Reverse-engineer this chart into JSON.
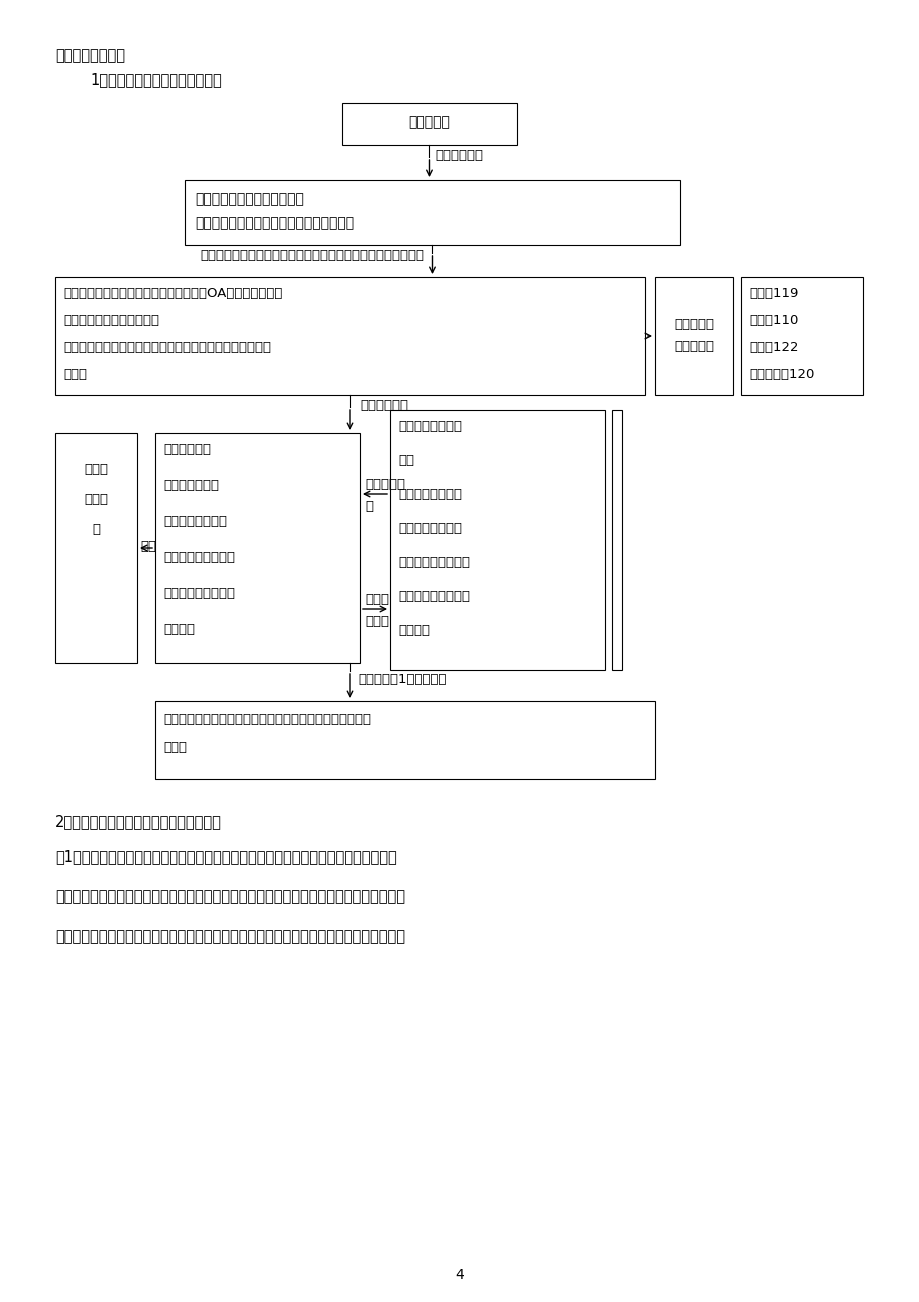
{
  "bg_color": "#ffffff",
  "page_number": "4",
  "top_text": "全知识培训》）。",
  "section1_title": "1、火灾、爆炸事故应急工作流程",
  "box1_text": "事故目击人",
  "arrow1_label": "第一时间报告",
  "box2_line1": "离事故突发地最近的项目领导",
  "box2_line2": "（含专业工长及级别以上的项目任何领导）",
  "text_between": "迅速前往出事地点开展救治工作，并电话直接联系项目经理手机",
  "box3_lines": [
    "通知现场任何一位办公室职员，登录公司OA系统的手机短信",
    "编辑系统，发布预警信息。",
    "（此信息会一次发送给公司高管层及项目应急小组所有人手",
    "机上）"
  ],
  "box_right1_line1": "同时拨打外",
  "box_right1_line2": "部报警电话",
  "box_right2_lines": [
    "消防：119",
    "匪警：110",
    "交通：122",
    "急救中心：120"
  ],
  "arrow2_label": "启动应急机制",
  "box_left_lines": [
    "上报上",
    "一级机",
    "关"
  ],
  "arrow_left_label": "报告",
  "box4_lines": [
    "项目应急小组",
    "组长：项目经理",
    "副组长：安全总监",
    "组员：书记、土建副",
    "经理、项目总工、安",
    "装副经理"
  ],
  "box4_top_label_lines": [
    "事故信息反",
    "馈"
  ],
  "box4_bottom_label_lines": [
    "事件处",
    "理决策"
  ],
  "box5_lines": [
    "总部高层和工程指",
    "挥部",
    "组长：公司总经理",
    "副组长：公司书记",
    "组员：项目经理部、",
    "质量安全保证部、项",
    "目管理部"
  ],
  "arrow3_label": "事故发生后1小时内完成",
  "box6_lines": [
    "应急预案实施、过程修改、事后经验总结、报公司总部和政",
    "府部门"
  ],
  "section2_title": "2、火灾、爆炸事故应急流程应遵循的原则",
  "para1_lines": [
    "（1）紧急事故发生后，发现人应立即报警。一旦启动本预案，相关责任人要以处置重大",
    "紧急情况为压倒一切的首要任务，绝不能以任何理由推諾拖延。各部门之间、各单位之间必",
    "须服从指挥、协调配合，共同做好工作。因工作不到位或玩忽职守造成严重后果的，要追究"
  ]
}
